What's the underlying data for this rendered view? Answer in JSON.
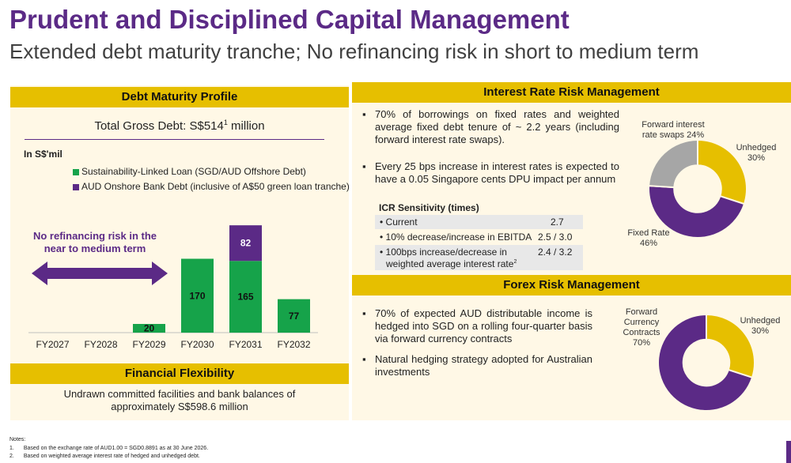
{
  "header": {
    "title": "Prudent and Disciplined Capital Management",
    "subtitle": "Extended debt maturity tranche; No refinancing risk in short to medium term"
  },
  "debt_panel": {
    "heading": "Debt Maturity Profile",
    "total_label": "Total Gross Debt: S$514",
    "total_sup": "1",
    "total_suffix": " million",
    "unit_label": "In S$'mil",
    "legend_green": "Sustainability-Linked Loan (SGD/AUD Offshore Debt)",
    "legend_purple": "AUD Onshore Bank Debt (inclusive of A$50 green loan tranche)",
    "no_refi_line1": "No refinancing risk in the",
    "no_refi_line2": "near to medium term"
  },
  "financial_flexibility": {
    "heading": "Financial Flexibility",
    "line1": "Undrawn committed facilities and bank balances of",
    "line2": "approximately S$598.6 million"
  },
  "interest_panel": {
    "heading": "Interest Rate Risk Management",
    "bullet1": "70% of borrowings on fixed rates and weighted average fixed debt tenure of ~ 2.2 years (including forward interest rate swaps).",
    "bullet2": "Every 25 bps increase in interest rates is expected to have a 0.05 Singapore cents DPU impact per annum",
    "icr_title": "ICR Sensitivity (times)",
    "icr_rows": [
      {
        "label": "• Current",
        "value": "2.7"
      },
      {
        "label": "• 10% decrease/increase in EBITDA",
        "value": "2.5 / 3.0"
      },
      {
        "label": "• 100bps increase/decrease in",
        "label2": "weighted average interest rate",
        "sup": "2",
        "value": "2.4 / 3.2"
      }
    ],
    "pie_labels": {
      "swaps_line1": "Forward interest",
      "swaps_line2": "rate swaps 24%",
      "unhedged_line1": "Unhedged",
      "unhedged_line2": "30%",
      "fixed_line1": "Fixed Rate",
      "fixed_line2": "46%"
    }
  },
  "forex_panel": {
    "heading": "Forex Risk Management",
    "bullet1": "70% of expected AUD distributable income is hedged into SGD on a rolling four-quarter basis via forward currency contracts",
    "bullet2": "Natural hedging strategy adopted for Australian investments",
    "pie_labels": {
      "fwd_line1": "Forward",
      "fwd_line2": "Currency",
      "fwd_line3": "Contracts",
      "fwd_line4": "70%",
      "unhedged_line1": "Unhedged",
      "unhedged_line2": "30%"
    }
  },
  "notes": {
    "heading": "Notes:",
    "n1_num": "1.",
    "n1": "Based on the exchange rate of AUD1.00 = SGD0.8891 as at 30 June 2026.",
    "n2_num": "2.",
    "n2": "Based on weighted average interest rate of hedged and unhedged debt."
  },
  "colors": {
    "purple": "#5b2a86",
    "green": "#16a34a",
    "gold": "#e6bf00",
    "grey": "#a6a6a6",
    "panel_bg": "#fff8e6"
  },
  "chart_data": [
    {
      "type": "bar",
      "title": "Debt Maturity Profile",
      "ylabel": "In S$'mil",
      "categories": [
        "FY2027",
        "FY2028",
        "FY2029",
        "FY2030",
        "FY2031",
        "FY2032"
      ],
      "series": [
        {
          "name": "Sustainability-Linked Loan (SGD/AUD Offshore Debt)",
          "values": [
            0,
            0,
            20,
            170,
            165,
            77
          ],
          "color": "#16a34a"
        },
        {
          "name": "AUD Onshore Bank Debt (inclusive of A$50 green loan tranche)",
          "values": [
            0,
            0,
            0,
            0,
            82,
            0
          ],
          "color": "#5b2a86"
        }
      ],
      "stacked": true,
      "ylim": [
        0,
        250
      ]
    },
    {
      "type": "pie",
      "title": "Interest Rate Risk Management",
      "donut": true,
      "slices": [
        {
          "label": "Unhedged",
          "value": 30,
          "color": "#e6bf00"
        },
        {
          "label": "Fixed Rate",
          "value": 46,
          "color": "#5b2a86"
        },
        {
          "label": "Forward interest rate swaps",
          "value": 24,
          "color": "#a6a6a6"
        }
      ]
    },
    {
      "type": "pie",
      "title": "Forex Risk Management",
      "donut": true,
      "slices": [
        {
          "label": "Unhedged",
          "value": 30,
          "color": "#e6bf00"
        },
        {
          "label": "Forward Currency Contracts",
          "value": 70,
          "color": "#5b2a86"
        }
      ]
    }
  ]
}
